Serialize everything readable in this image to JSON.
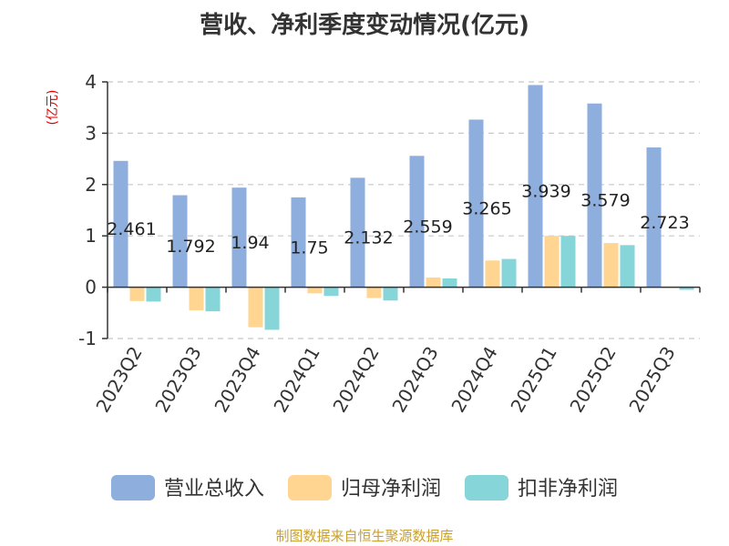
{
  "chart_data": {
    "type": "bar",
    "title": "营收、净利季度变动情况(亿元)",
    "ylabel": "(亿元)",
    "xlabel": "",
    "ylim": [
      -1,
      4
    ],
    "yticks": [
      -1,
      0,
      1,
      2,
      3,
      4
    ],
    "grid": true,
    "legend_position": "bottom",
    "categories": [
      "2023Q2",
      "2023Q3",
      "2023Q4",
      "2024Q1",
      "2024Q2",
      "2024Q3",
      "2024Q4",
      "2025Q1",
      "2025Q2",
      "2025Q3"
    ],
    "series": [
      {
        "name": "营业总收入",
        "color": "#8eaede",
        "values": [
          2.461,
          1.792,
          1.94,
          1.75,
          2.132,
          2.559,
          3.265,
          3.939,
          3.579,
          2.723
        ]
      },
      {
        "name": "归母净利润",
        "color": "#ffd591",
        "values": [
          -0.27,
          -0.45,
          -0.78,
          -0.12,
          -0.21,
          0.19,
          0.52,
          1.0,
          0.86,
          -0.01
        ]
      },
      {
        "name": "扣非净利润",
        "color": "#86d5d9",
        "values": [
          -0.28,
          -0.47,
          -0.83,
          -0.17,
          -0.26,
          0.17,
          0.55,
          1.0,
          0.82,
          -0.05
        ]
      }
    ],
    "data_labels": [
      "2.461",
      "1.792",
      "1.94",
      "1.75",
      "2.132",
      "2.559",
      "3.265",
      "3.939",
      "3.579",
      "2.723"
    ]
  },
  "source": "制图数据来自恒生聚源数据库"
}
